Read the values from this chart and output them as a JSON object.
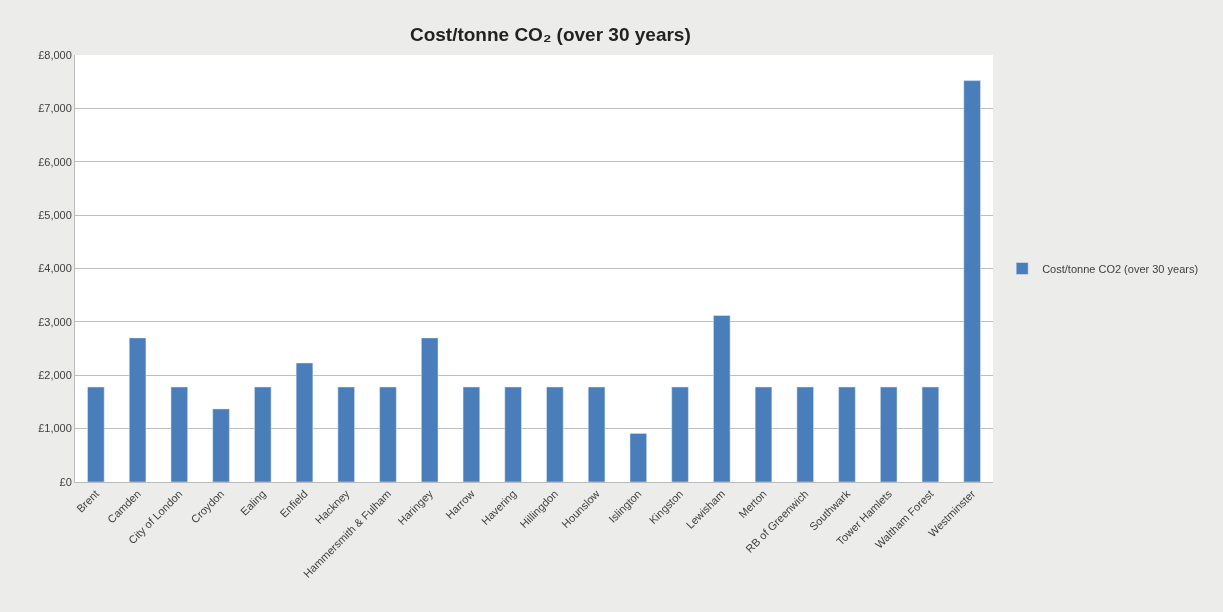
{
  "chart_data": {
    "type": "bar",
    "title": "Cost/tonne CO₂ (over 30 years)",
    "categories": [
      "Brent",
      "Camden",
      "City of London",
      "Croydon",
      "Ealing",
      "Enfield",
      "Hackney",
      "Hammersmith & Fulham",
      "Haringey",
      "Harrow",
      "Havering",
      "Hillingdon",
      "Hounslow",
      "Islington",
      "Kingston",
      "Lewisham",
      "Merton",
      "RB of Greenwich",
      "Southwark",
      "Tower Hamlets",
      "Waltham Forest",
      "Westminster"
    ],
    "series": [
      {
        "name": "Cost/tonne CO2 (over 30 years)",
        "color": "#4a7ebb",
        "values": [
          1780,
          2700,
          1780,
          1370,
          1780,
          2230,
          1780,
          1780,
          2700,
          1780,
          1780,
          1780,
          1780,
          910,
          1780,
          3120,
          1780,
          1780,
          1780,
          1780,
          1780,
          7520
        ]
      }
    ],
    "ylim": [
      0,
      8000
    ],
    "yticks": [
      {
        "value": 0,
        "label": "£0"
      },
      {
        "value": 1000,
        "label": "£1,000"
      },
      {
        "value": 2000,
        "label": "£2,000"
      },
      {
        "value": 3000,
        "label": "£3,000"
      },
      {
        "value": 4000,
        "label": "£4,000"
      },
      {
        "value": 5000,
        "label": "£5,000"
      },
      {
        "value": 6000,
        "label": "£6,000"
      },
      {
        "value": 7000,
        "label": "£7,000"
      },
      {
        "value": 8000,
        "label": "£8,000"
      }
    ],
    "grid": "y",
    "legend": "right"
  }
}
